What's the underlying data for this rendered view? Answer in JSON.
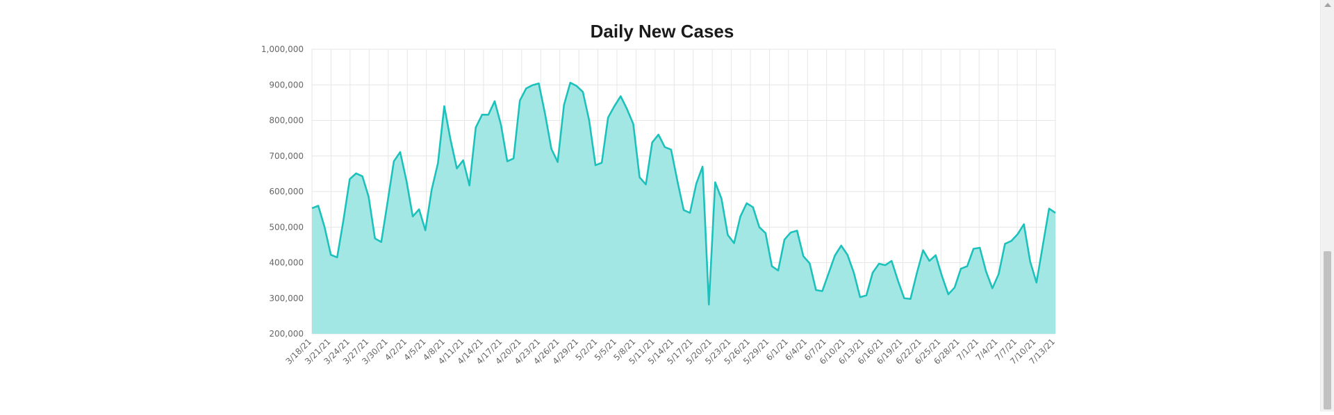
{
  "chart_data": {
    "type": "area",
    "title": "Daily New Cases",
    "xlabel": "",
    "ylabel": "",
    "ylim": [
      200000,
      1000000
    ],
    "yticks": [
      "200,000",
      "300,000",
      "400,000",
      "500,000",
      "600,000",
      "700,000",
      "800,000",
      "900,000",
      "1,000,000"
    ],
    "ytick_values": [
      200000,
      300000,
      400000,
      500000,
      600000,
      700000,
      800000,
      900000,
      1000000
    ],
    "x_tick_labels": [
      "3/18/21",
      "3/21/21",
      "3/24/21",
      "3/27/21",
      "3/30/21",
      "4/2/21",
      "4/5/21",
      "4/8/21",
      "4/11/21",
      "4/14/21",
      "4/17/21",
      "4/20/21",
      "4/23/21",
      "4/26/21",
      "4/29/21",
      "5/2/21",
      "5/5/21",
      "5/8/21",
      "5/11/21",
      "5/14/21",
      "5/17/21",
      "5/20/21",
      "5/23/21",
      "5/26/21",
      "5/29/21",
      "6/1/21",
      "6/4/21",
      "6/7/21",
      "6/10/21",
      "6/13/21",
      "6/16/21",
      "6/19/21",
      "6/22/21",
      "6/25/21",
      "6/28/21",
      "7/1/21",
      "7/4/21",
      "7/7/21",
      "7/10/21",
      "7/13/21"
    ],
    "grid": true,
    "legend": "none",
    "colors": {
      "line": "#1cc1bb",
      "fill": "#a2e7e4",
      "grid": "#e6e6e6",
      "title": "#1a1a1a",
      "tick": "#666666"
    },
    "series": [
      {
        "values": [
          553000,
          560000,
          500000,
          422000,
          415000,
          520000,
          635000,
          651000,
          643000,
          585000,
          468000,
          458000,
          570000,
          685000,
          711000,
          630000,
          530000,
          550000,
          491000,
          605000,
          680000,
          840000,
          745000,
          665000,
          688000,
          617000,
          780000,
          816000,
          816000,
          854000,
          788000,
          685000,
          693000,
          856000,
          890000,
          899000,
          904000,
          818000,
          720000,
          683000,
          843000,
          906000,
          897000,
          880000,
          800000,
          674000,
          681000,
          808000,
          840000,
          868000,
          832000,
          790000,
          640000,
          620000,
          738000,
          760000,
          725000,
          718000,
          630000,
          548000,
          540000,
          622000,
          670000,
          282000,
          626000,
          580000,
          478000,
          455000,
          530000,
          567000,
          556000,
          500000,
          483000,
          390000,
          378000,
          465000,
          485000,
          490000,
          418000,
          398000,
          323000,
          320000,
          370000,
          420000,
          448000,
          422000,
          372000,
          303000,
          308000,
          372000,
          397000,
          393000,
          405000,
          350000,
          300000,
          298000,
          370000,
          435000,
          405000,
          421000,
          362000,
          311000,
          330000,
          383000,
          390000,
          439000,
          442000,
          375000,
          328000,
          368000,
          453000,
          461000,
          480000,
          508000,
          403000,
          344000,
          448000,
          552000,
          540000
        ]
      }
    ]
  }
}
